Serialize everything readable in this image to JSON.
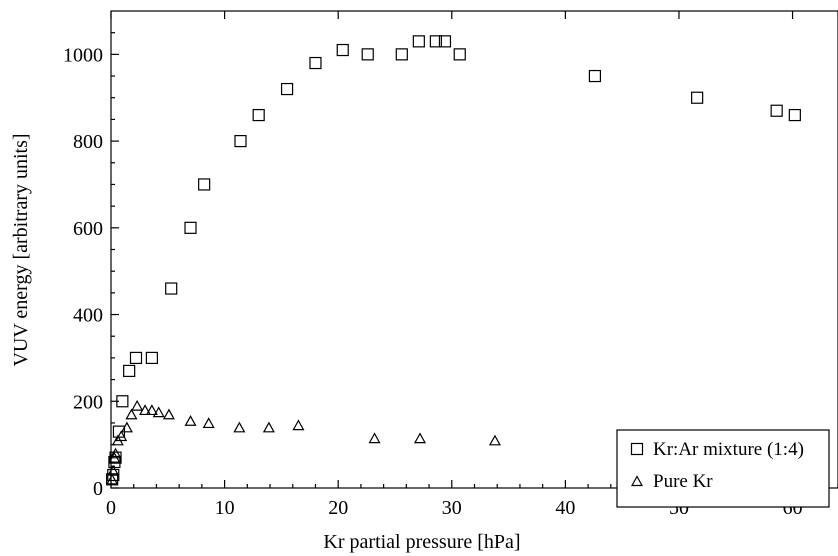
{
  "chart_data": {
    "type": "scatter",
    "title": "",
    "xlabel": "Kr partial pressure [hPa]",
    "ylabel": "VUV energy [arbitrary units]",
    "xlim": [
      0,
      64
    ],
    "ylim": [
      0,
      1100
    ],
    "x_ticks": [
      0,
      10,
      20,
      30,
      40,
      50,
      60
    ],
    "y_ticks": [
      0,
      200,
      400,
      600,
      800,
      1000
    ],
    "grid": false,
    "legend_position": "lower-right",
    "series": [
      {
        "name": "Kr:Ar mixture (1:4)",
        "marker": "square",
        "points": [
          [
            0.1,
            20
          ],
          [
            0.2,
            30
          ],
          [
            0.3,
            60
          ],
          [
            0.4,
            70
          ],
          [
            0.7,
            130
          ],
          [
            1.0,
            200
          ],
          [
            1.6,
            270
          ],
          [
            2.2,
            300
          ],
          [
            3.6,
            300
          ],
          [
            5.3,
            460
          ],
          [
            7.0,
            600
          ],
          [
            8.2,
            700
          ],
          [
            11.4,
            800
          ],
          [
            13.0,
            860
          ],
          [
            15.5,
            920
          ],
          [
            18.0,
            980
          ],
          [
            20.4,
            1010
          ],
          [
            22.6,
            1000
          ],
          [
            25.6,
            1000
          ],
          [
            27.1,
            1030
          ],
          [
            28.6,
            1030
          ],
          [
            29.4,
            1030
          ],
          [
            30.7,
            1000
          ],
          [
            42.6,
            950
          ],
          [
            51.6,
            900
          ],
          [
            58.6,
            870
          ],
          [
            60.2,
            860
          ]
        ]
      },
      {
        "name": "Pure Kr",
        "marker": "triangle",
        "points": [
          [
            0.1,
            20
          ],
          [
            0.2,
            40
          ],
          [
            0.3,
            70
          ],
          [
            0.4,
            80
          ],
          [
            0.6,
            110
          ],
          [
            0.9,
            120
          ],
          [
            1.4,
            140
          ],
          [
            1.8,
            170
          ],
          [
            2.3,
            190
          ],
          [
            3.0,
            180
          ],
          [
            3.6,
            180
          ],
          [
            4.2,
            175
          ],
          [
            5.1,
            170
          ],
          [
            7.0,
            155
          ],
          [
            8.6,
            150
          ],
          [
            11.3,
            140
          ],
          [
            13.9,
            140
          ],
          [
            16.5,
            145
          ],
          [
            23.2,
            115
          ],
          [
            27.2,
            115
          ],
          [
            33.8,
            110
          ],
          [
            45.9,
            90
          ],
          [
            47.7,
            90
          ],
          [
            53.1,
            75
          ],
          [
            59.6,
            60
          ]
        ]
      }
    ]
  }
}
